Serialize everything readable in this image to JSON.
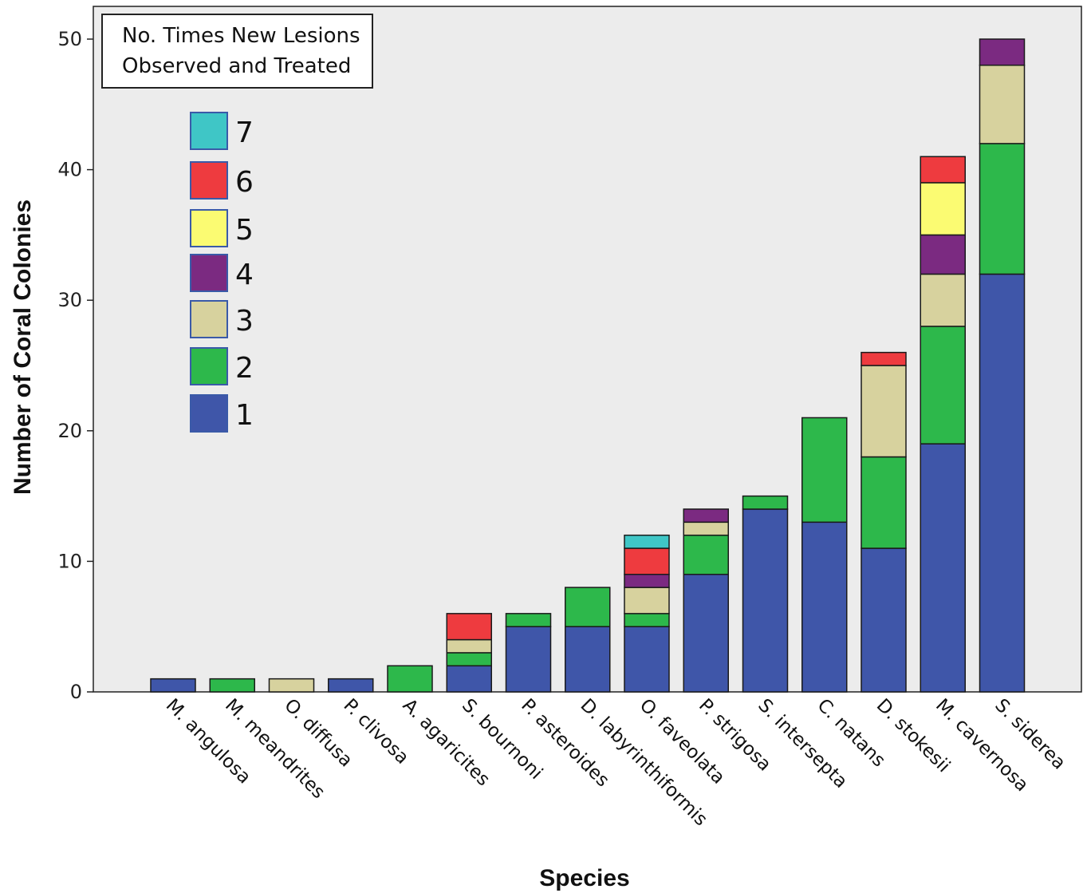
{
  "chart_data": {
    "type": "bar",
    "stacked": true,
    "xlabel": "Species",
    "ylabel": "Number of Coral Colonies",
    "ylim": [
      0,
      50
    ],
    "yticks": [
      0,
      10,
      20,
      30,
      40,
      50
    ],
    "legend": {
      "title_lines": [
        "No. Times New Lesions",
        "Observed and Treated"
      ],
      "placement": "top-left"
    },
    "categories": [
      "M. angulosa",
      "M. meandrites",
      "O. diffusa",
      "P. clivosa",
      "A. agaricites",
      "S. bournoni",
      "P. asteroides",
      "D. labyrinthiformis",
      "O. faveolata",
      "P. strigosa",
      "S. intersepta",
      "C. natans",
      "D. stokesii",
      "M. cavernosa",
      "S. siderea"
    ],
    "series": [
      {
        "name": "1",
        "color": "#3f56a9",
        "values": [
          1,
          0,
          0,
          1,
          0,
          2,
          5,
          5,
          5,
          9,
          14,
          13,
          11,
          19,
          32
        ]
      },
      {
        "name": "2",
        "color": "#2db84b",
        "values": [
          0,
          1,
          0,
          0,
          2,
          1,
          1,
          3,
          1,
          3,
          1,
          8,
          7,
          9,
          10
        ]
      },
      {
        "name": "3",
        "color": "#d7d29e",
        "values": [
          0,
          0,
          1,
          0,
          0,
          1,
          0,
          0,
          2,
          1,
          0,
          0,
          7,
          4,
          6
        ]
      },
      {
        "name": "4",
        "color": "#7b2a81",
        "values": [
          0,
          0,
          0,
          0,
          0,
          0,
          0,
          0,
          1,
          1,
          0,
          0,
          0,
          3,
          2
        ]
      },
      {
        "name": "5",
        "color": "#fbfb72",
        "values": [
          0,
          0,
          0,
          0,
          0,
          0,
          0,
          0,
          0,
          0,
          0,
          0,
          0,
          4,
          0
        ]
      },
      {
        "name": "6",
        "color": "#ee3b3f",
        "values": [
          0,
          0,
          0,
          0,
          0,
          2,
          0,
          0,
          2,
          0,
          0,
          0,
          1,
          2,
          0
        ]
      },
      {
        "name": "7",
        "color": "#3fc6c6",
        "values": [
          0,
          0,
          0,
          0,
          0,
          0,
          0,
          0,
          1,
          0,
          0,
          0,
          0,
          0,
          0
        ]
      }
    ],
    "background": "#ececec"
  }
}
